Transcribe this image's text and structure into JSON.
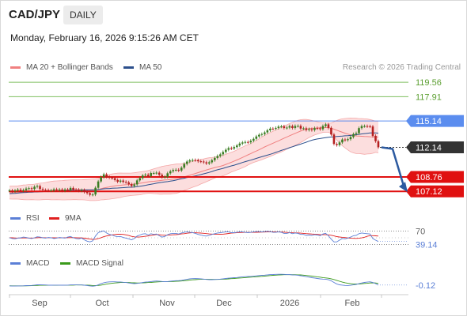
{
  "header": {
    "symbol": "CAD/JPY",
    "period": "DAILY",
    "timestamp": "Monday, February 16, 2026 9:15:26 AM CET"
  },
  "legends": {
    "main": [
      {
        "label": "MA 20 + Bollinger Bands",
        "color": "#f08080"
      },
      {
        "label": "MA 50",
        "color": "#2c4f8c"
      }
    ],
    "rsi": [
      {
        "label": "RSI",
        "color": "#5b7fd6"
      },
      {
        "label": "9MA",
        "color": "#e02020"
      }
    ],
    "macd": [
      {
        "label": "MACD",
        "color": "#5b7fd6"
      },
      {
        "label": "MACD Signal",
        "color": "#3a9a1a"
      }
    ]
  },
  "credit": "Research © 2026 Trading Central",
  "chart_data": {
    "type": "line",
    "x_ticks": [
      "Sep",
      "Oct",
      "Nov",
      "Dec",
      "2026",
      "Feb"
    ],
    "ylim": [
      106.6,
      120.2
    ],
    "price": [
      107.22,
      107.13,
      107.23,
      107.32,
      107.2,
      107.26,
      107.44,
      107.48,
      107.39,
      107.64,
      107.73,
      107.39,
      107.28,
      107.27,
      107.22,
      107.23,
      107.35,
      107.27,
      107.33,
      107.2,
      107.33,
      107.27,
      107.51,
      107.32,
      107.31,
      107.2,
      107.27,
      107.05,
      106.92,
      106.73,
      106.76,
      107.53,
      108.25,
      108.75,
      109.06,
      108.78,
      108.68,
      108.62,
      108.42,
      108.22,
      108.35,
      108.2,
      108.15,
      107.94,
      107.73,
      107.91,
      108.37,
      108.63,
      108.93,
      109.02,
      108.86,
      109.21,
      109.21,
      109.25,
      109.01,
      108.75,
      108.78,
      109.18,
      109.41,
      109.55,
      109.58,
      109.49,
      109.82,
      110.25,
      110.52,
      110.65,
      110.69,
      110.68,
      110.55,
      110.52,
      110.43,
      110.3,
      110.43,
      110.67,
      110.93,
      111.15,
      111.34,
      111.61,
      111.86,
      112.05,
      112.0,
      112.17,
      112.35,
      112.57,
      112.69,
      112.75,
      112.71,
      112.89,
      113.11,
      113.38,
      113.57,
      113.65,
      113.84,
      114.08,
      114.27,
      114.26,
      114.35,
      114.5,
      114.53,
      114.35,
      114.39,
      114.56,
      114.35,
      114.58,
      114.58,
      114.28,
      114.31,
      114.12,
      114.21,
      114.11,
      114.33,
      114.31,
      114.21,
      114.57,
      114.76,
      114.36,
      113.6,
      112.53,
      112.4,
      112.7,
      113.03,
      112.96,
      113.07,
      113.32,
      113.65,
      113.76,
      114.33,
      114.56,
      114.56,
      114.54,
      114.52,
      113.45,
      112.84,
      112.14
    ],
    "bb_upper": [
      107.7,
      107.73,
      107.73,
      107.74,
      107.79,
      107.84,
      107.86,
      107.9,
      107.9,
      107.94,
      108.0,
      108.05,
      108.08,
      108.13,
      108.19,
      108.25,
      108.29,
      108.31,
      108.33,
      108.35,
      108.38,
      108.4,
      108.42,
      108.44,
      108.43,
      108.44,
      108.44,
      108.46,
      108.48,
      108.5,
      108.54,
      108.55,
      108.6,
      108.69,
      108.83,
      108.94,
      109.03,
      109.1,
      109.16,
      109.2,
      109.21,
      109.2,
      109.2,
      109.2,
      109.21,
      109.24,
      109.29,
      109.34,
      109.38,
      109.42,
      109.49,
      109.58,
      109.68,
      109.77,
      109.87,
      109.96,
      110.02,
      110.07,
      110.13,
      110.18,
      110.23,
      110.26,
      110.27,
      110.31,
      110.37,
      110.44,
      110.53,
      110.62,
      110.7,
      110.76,
      110.82,
      110.9,
      110.95,
      110.98,
      111.02,
      111.07,
      111.15,
      111.24,
      111.34,
      111.46,
      111.57,
      111.69,
      111.84,
      112.01,
      112.16,
      112.32,
      112.44,
      112.57,
      112.74,
      112.92,
      113.1,
      113.31,
      113.5,
      113.67,
      113.83,
      113.98,
      114.13,
      114.28,
      114.44,
      114.59,
      114.71,
      114.85,
      114.98,
      115.1,
      115.22,
      115.29,
      115.32,
      115.32,
      115.28,
      115.21,
      115.13,
      115.06,
      114.98,
      114.94,
      114.92,
      114.89,
      114.91,
      115.06,
      115.2,
      115.32,
      115.39,
      115.43,
      115.46,
      115.48,
      115.47,
      115.45,
      115.42,
      115.41,
      115.39,
      115.36,
      115.31,
      115.22,
      115.12,
      115.12
    ],
    "bb_mid": [
      106.97,
      106.98,
      106.99,
      106.99,
      107.0,
      107.01,
      107.01,
      107.03,
      107.04,
      107.05,
      107.08,
      107.1,
      107.13,
      107.16,
      107.19,
      107.21,
      107.22,
      107.24,
      107.25,
      107.25,
      107.27,
      107.28,
      107.29,
      107.31,
      107.3,
      107.3,
      107.3,
      107.3,
      107.29,
      107.28,
      107.3,
      107.31,
      107.35,
      107.42,
      107.5,
      107.57,
      107.63,
      107.69,
      107.74,
      107.79,
      107.82,
      107.85,
      107.88,
      107.9,
      107.93,
      107.96,
      108.0,
      108.04,
      108.09,
      108.14,
      108.19,
      108.24,
      108.27,
      108.3,
      108.33,
      108.38,
      108.42,
      108.44,
      108.47,
      108.52,
      108.56,
      108.61,
      108.69,
      108.77,
      108.86,
      108.95,
      109.06,
      109.16,
      109.26,
      109.36,
      109.46,
      109.56,
      109.65,
      109.74,
      109.83,
      109.91,
      109.98,
      110.07,
      110.19,
      110.31,
      110.44,
      110.57,
      110.7,
      110.84,
      110.99,
      111.13,
      111.28,
      111.43,
      111.58,
      111.72,
      111.86,
      112.02,
      112.18,
      112.33,
      112.47,
      112.61,
      112.75,
      112.88,
      113.03,
      113.18,
      113.32,
      113.46,
      113.6,
      113.73,
      113.87,
      113.99,
      114.1,
      114.19,
      114.27,
      114.3,
      114.34,
      114.35,
      114.37,
      114.39,
      114.39,
      114.38,
      114.32,
      114.21,
      114.09,
      113.98,
      113.86,
      113.75,
      113.65,
      113.56,
      113.49,
      113.44,
      113.42,
      113.4,
      113.37,
      113.36,
      113.35,
      113.34,
      113.33,
      113.31
    ],
    "bb_lower": [
      106.25,
      106.24,
      106.25,
      106.24,
      106.21,
      106.18,
      106.16,
      106.16,
      106.18,
      106.16,
      106.15,
      106.15,
      106.18,
      106.19,
      106.19,
      106.17,
      106.16,
      106.17,
      106.16,
      106.15,
      106.15,
      106.16,
      106.16,
      106.18,
      106.18,
      106.16,
      106.16,
      106.15,
      106.11,
      106.07,
      106.07,
      106.07,
      106.1,
      106.15,
      106.17,
      106.2,
      106.23,
      106.28,
      106.32,
      106.37,
      106.42,
      106.51,
      106.56,
      106.61,
      106.65,
      106.68,
      106.71,
      106.73,
      106.79,
      106.86,
      106.9,
      106.9,
      106.86,
      106.83,
      106.8,
      106.8,
      106.82,
      106.81,
      106.81,
      106.86,
      106.89,
      106.97,
      107.11,
      107.23,
      107.35,
      107.46,
      107.58,
      107.69,
      107.81,
      107.96,
      108.09,
      108.22,
      108.36,
      108.5,
      108.64,
      108.75,
      108.81,
      108.9,
      109.03,
      109.17,
      109.32,
      109.44,
      109.56,
      109.67,
      109.81,
      109.94,
      110.12,
      110.28,
      110.42,
      110.52,
      110.62,
      110.73,
      110.85,
      110.98,
      111.1,
      111.24,
      111.38,
      111.48,
      111.62,
      111.76,
      111.93,
      112.08,
      112.21,
      112.36,
      112.52,
      112.69,
      112.88,
      113.07,
      113.26,
      113.4,
      113.54,
      113.65,
      113.75,
      113.84,
      113.86,
      113.86,
      113.72,
      113.36,
      112.98,
      112.64,
      112.33,
      112.08,
      111.84,
      111.63,
      111.51,
      111.43,
      111.43,
      111.39,
      111.35,
      111.38,
      111.4,
      111.46,
      111.56,
      111.51
    ],
    "ma50": [
      106.85,
      106.88,
      106.9,
      106.92,
      106.96,
      106.98,
      107.0,
      107.02,
      107.03,
      107.05,
      107.05,
      107.07,
      107.09,
      107.11,
      107.12,
      107.14,
      107.16,
      107.16,
      107.17,
      107.19,
      107.21,
      107.22,
      107.24,
      107.25,
      107.26,
      107.27,
      107.27,
      107.28,
      107.28,
      107.28,
      107.28,
      107.3,
      107.33,
      107.37,
      107.41,
      107.43,
      107.44,
      107.47,
      107.49,
      107.5,
      107.53,
      107.55,
      107.57,
      107.59,
      107.59,
      107.62,
      107.66,
      107.7,
      107.75,
      107.81,
      107.87,
      107.93,
      107.99,
      108.05,
      108.11,
      108.15,
      108.19,
      108.23,
      108.28,
      108.34,
      108.4,
      108.47,
      108.55,
      108.62,
      108.7,
      108.76,
      108.82,
      108.88,
      108.96,
      109.03,
      109.12,
      109.2,
      109.28,
      109.38,
      109.49,
      109.58,
      109.66,
      109.74,
      109.84,
      109.93,
      110.02,
      110.1,
      110.2,
      110.3,
      110.41,
      110.51,
      110.6,
      110.68,
      110.78,
      110.88,
      110.98,
      111.07,
      111.16,
      111.25,
      111.35,
      111.45,
      111.56,
      111.67,
      111.79,
      111.89,
      111.99,
      112.1,
      112.2,
      112.31,
      112.41,
      112.51,
      112.62,
      112.72,
      112.84,
      112.95,
      113.03,
      113.09,
      113.14,
      113.19,
      113.24,
      113.28,
      113.32,
      113.34,
      113.37,
      113.4,
      113.42,
      113.45,
      113.47,
      113.5,
      113.54,
      113.58,
      113.62,
      113.67,
      113.71,
      113.74,
      113.78,
      113.78,
      113.78,
      113.76
    ],
    "levels": [
      {
        "value": 119.56,
        "label": "119.56",
        "style": "green"
      },
      {
        "value": 117.91,
        "label": "117.91",
        "style": "green"
      },
      {
        "value": 115.14,
        "label": "115.14",
        "style": "blue"
      },
      {
        "value": 112.14,
        "label": "112.14",
        "style": "last"
      },
      {
        "value": 108.76,
        "label": "108.76",
        "style": "red"
      },
      {
        "value": 107.12,
        "label": "107.12",
        "style": "red"
      }
    ],
    "forecast_target": 107.12,
    "rsi": {
      "labels": [
        "70",
        "39.14"
      ],
      "values": [
        50,
        48,
        47,
        49,
        50,
        52,
        51,
        49,
        48,
        50,
        53,
        52,
        50,
        49,
        51,
        50,
        48,
        49,
        51,
        50,
        49,
        52,
        54,
        50,
        48,
        47,
        49,
        44,
        40,
        38,
        41,
        55,
        65,
        68,
        70,
        64,
        60,
        58,
        55,
        53,
        54,
        51,
        49,
        47,
        44,
        48,
        55,
        58,
        61,
        62,
        58,
        62,
        60,
        61,
        56,
        52,
        54,
        59,
        62,
        63,
        63,
        61,
        64,
        66,
        67,
        66,
        65,
        63,
        60,
        58,
        56,
        55,
        57,
        60,
        62,
        64,
        65,
        66,
        67,
        67,
        65,
        65,
        66,
        67,
        67,
        66,
        65,
        66,
        67,
        68,
        68,
        67,
        68,
        69,
        68,
        66,
        66,
        67,
        66,
        63,
        63,
        65,
        62,
        64,
        63,
        60,
        60,
        57,
        58,
        57,
        59,
        58,
        56,
        61,
        63,
        56,
        46,
        38,
        38,
        43,
        48,
        47,
        49,
        52,
        56,
        57,
        62,
        64,
        63,
        62,
        61,
        48,
        43,
        39.14
      ],
      "ma9": [
        50,
        50,
        49.5,
        49.3,
        49.2,
        49.5,
        49.6,
        49.4,
        49.3,
        49.6,
        50.2,
        50.6,
        50.5,
        50.3,
        50.3,
        50.2,
        50.0,
        49.8,
        49.8,
        49.9,
        49.9,
        50.2,
        50.7,
        50.5,
        50.2,
        49.8,
        49.8,
        48.9,
        47.7,
        46.4,
        45.4,
        45.8,
        47.8,
        50.3,
        53.3,
        55.4,
        57.0,
        58.5,
        59.8,
        60.4,
        60.7,
        59.9,
        58.5,
        56.6,
        54.2,
        52.7,
        52.1,
        52.5,
        53.2,
        54.4,
        55.3,
        56.8,
        58.4,
        59.6,
        59.0,
        57.9,
        57.4,
        57.6,
        58.2,
        58.7,
        59.2,
        60.0,
        61.2,
        62.1,
        63.4,
        64.3,
        64.8,
        64.7,
        64.4,
        63.9,
        63.2,
        62.3,
        61.4,
        60.8,
        60.4,
        60.1,
        60.3,
        60.7,
        61.6,
        62.6,
        63.6,
        64.4,
        65.0,
        65.4,
        65.7,
        65.8,
        65.8,
        65.8,
        66.0,
        66.2,
        66.4,
        66.6,
        66.8,
        67.0,
        67.3,
        67.2,
        67.1,
        67.0,
        66.9,
        66.3,
        65.6,
        65.3,
        64.8,
        64.5,
        64.2,
        63.6,
        63.0,
        62.3,
        61.7,
        61.0,
        60.5,
        59.9,
        59.3,
        59.1,
        59.1,
        58.5,
        57.4,
        55.6,
        53.5,
        52.2,
        51.5,
        50.6,
        49.6,
        48.7,
        48.3,
        48.2,
        48.7,
        49.8,
        51.7,
        54.3,
        56.2,
        56.2,
        55.7,
        55.0
      ],
      "ylim": [
        20,
        80
      ]
    },
    "macd": {
      "labels": [
        "-0.12"
      ],
      "macd": [
        -0.2,
        -0.21,
        -0.21,
        -0.2,
        -0.2,
        -0.19,
        -0.17,
        -0.16,
        -0.15,
        -0.12,
        -0.09,
        -0.09,
        -0.1,
        -0.11,
        -0.12,
        -0.13,
        -0.12,
        -0.12,
        -0.12,
        -0.13,
        -0.12,
        -0.12,
        -0.1,
        -0.1,
        -0.1,
        -0.11,
        -0.11,
        -0.13,
        -0.16,
        -0.2,
        -0.23,
        -0.19,
        -0.1,
        0.01,
        0.1,
        0.15,
        0.18,
        0.19,
        0.19,
        0.17,
        0.17,
        0.14,
        0.12,
        0.08,
        0.04,
        0.02,
        0.04,
        0.07,
        0.12,
        0.16,
        0.18,
        0.21,
        0.24,
        0.26,
        0.25,
        0.22,
        0.2,
        0.21,
        0.24,
        0.27,
        0.29,
        0.3,
        0.32,
        0.37,
        0.42,
        0.46,
        0.48,
        0.49,
        0.48,
        0.47,
        0.44,
        0.41,
        0.39,
        0.39,
        0.4,
        0.42,
        0.44,
        0.47,
        0.5,
        0.53,
        0.55,
        0.57,
        0.59,
        0.62,
        0.65,
        0.67,
        0.68,
        0.69,
        0.71,
        0.74,
        0.77,
        0.79,
        0.81,
        0.83,
        0.86,
        0.87,
        0.88,
        0.89,
        0.89,
        0.88,
        0.86,
        0.86,
        0.83,
        0.82,
        0.8,
        0.76,
        0.72,
        0.67,
        0.62,
        0.57,
        0.54,
        0.5,
        0.46,
        0.44,
        0.43,
        0.38,
        0.28,
        0.13,
        -0.01,
        -0.09,
        -0.12,
        -0.15,
        -0.16,
        -0.14,
        -0.1,
        -0.06,
        0.01,
        0.08,
        0.13,
        0.16,
        0.19,
        0.12,
        0.02,
        -0.12
      ],
      "signal": [
        -0.18,
        -0.19,
        -0.19,
        -0.19,
        -0.19,
        -0.19,
        -0.19,
        -0.18,
        -0.17,
        -0.16,
        -0.15,
        -0.14,
        -0.13,
        -0.13,
        -0.13,
        -0.13,
        -0.13,
        -0.13,
        -0.12,
        -0.12,
        -0.12,
        -0.12,
        -0.12,
        -0.12,
        -0.11,
        -0.11,
        -0.11,
        -0.12,
        -0.13,
        -0.14,
        -0.16,
        -0.16,
        -0.15,
        -0.12,
        -0.08,
        -0.03,
        0.01,
        0.05,
        0.08,
        0.1,
        0.12,
        0.12,
        0.12,
        0.12,
        0.1,
        0.09,
        0.08,
        0.08,
        0.09,
        0.1,
        0.12,
        0.13,
        0.15,
        0.17,
        0.19,
        0.2,
        0.2,
        0.2,
        0.21,
        0.22,
        0.24,
        0.25,
        0.26,
        0.29,
        0.31,
        0.34,
        0.37,
        0.39,
        0.41,
        0.42,
        0.43,
        0.43,
        0.42,
        0.42,
        0.41,
        0.41,
        0.42,
        0.43,
        0.44,
        0.46,
        0.48,
        0.5,
        0.52,
        0.54,
        0.56,
        0.58,
        0.6,
        0.62,
        0.64,
        0.66,
        0.68,
        0.7,
        0.72,
        0.74,
        0.77,
        0.79,
        0.81,
        0.82,
        0.84,
        0.85,
        0.85,
        0.85,
        0.85,
        0.85,
        0.84,
        0.83,
        0.81,
        0.78,
        0.75,
        0.72,
        0.69,
        0.65,
        0.62,
        0.58,
        0.55,
        0.52,
        0.47,
        0.4,
        0.32,
        0.24,
        0.16,
        0.1,
        0.05,
        0.01,
        -0.01,
        -0.02,
        -0.02,
        0.0,
        0.03,
        0.05,
        0.08,
        0.09,
        0.08,
        0.04
      ],
      "ylim": [
        -0.5,
        1.2
      ]
    }
  }
}
